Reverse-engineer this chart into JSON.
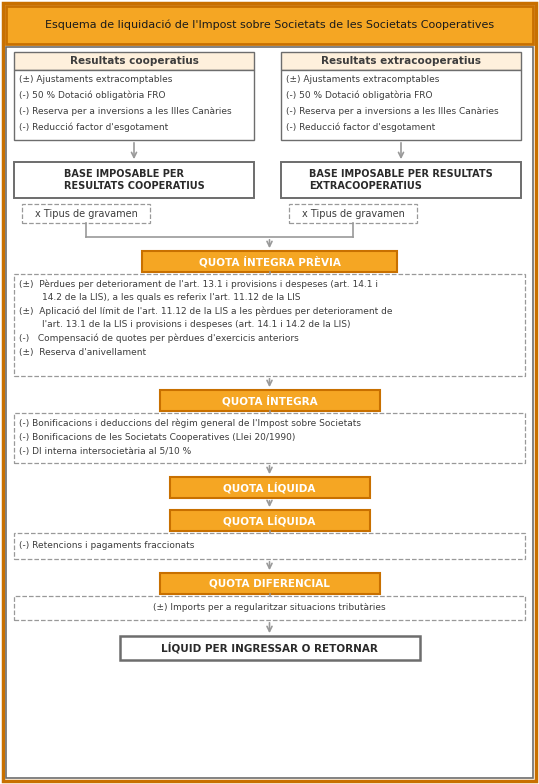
{
  "title": "Esquema de liquidació de l'Impost sobre Societats de les Societats Cooperatives",
  "orange": "#F5A623",
  "orange_dark": "#C87000",
  "orange_border": "#D4870A",
  "white": "#FFFFFF",
  "light_peach": "#FEF0DC",
  "gray_text": "#3D3D3D",
  "arrow_gray": "#999999",
  "box_border": "#6D6D6D",
  "dashed_gray": "#999999",
  "left_title": "Resultats cooperatius",
  "right_title": "Resultats extracooperatius",
  "left_items": [
    "(±) Ajustaments extracomptables",
    "(-) 50 % Dotació obligatòria FRO",
    "(-) Reserva per a inversions a les Illes Canàries",
    "(-) Reducció factor d'esgotament"
  ],
  "right_items": [
    "(±) Ajustaments extracomptables",
    "(-) 50 % Dotació obligatòria FRO",
    "(-) Reserva per a inversions a les Illes Canàries",
    "(-) Reducció factor d'esgotament"
  ],
  "left_base": "BASE IMPOSABLE PER\nRESULTATS COOPERATIUS",
  "right_base": "BASE IMPOSABLE PER RESULTATS\nEXTRACOOPERATIUS",
  "tipus": "x Tipus de gravamen",
  "qip_label": "QUOTA ÍNTEGRA PRÈVIA",
  "qip_items": [
    "(±)  Pèrdues per deteriorament de l'art. 13.1 i provisions i despeses (art. 14.1 i\n        14.2 de la LIS), a les quals es referix l'art. 11.12 de la LIS",
    "(±)  Aplicació del límit de l'art. 11.12 de la LIS a les pèrdues per deteriorament de\n        l'art. 13.1 de la LIS i provisions i despeses (art. 14.1 i 14.2 de la LIS)",
    "(-)   Compensació de quotes per pèrdues d'exercicis anteriors",
    "(±)  Reserva d'anivellament"
  ],
  "qi_label": "QUOTA ÍNTEGRA",
  "qi_items": [
    "(-) Bonificacions i deduccions del règim general de l'Impost sobre Societats",
    "(-) Bonificacions de les Societats Cooperatives (Llei 20/1990)",
    "(-) DI interna intersocietària al 5/10 %"
  ],
  "ql1_label": "QUOTA LÍQUIDA",
  "ql2_label": "QUOTA LÍQUIDA",
  "ql_items": [
    "(-) Retencions i pagaments fraccionats"
  ],
  "qd_label": "QUOTA DIFERENCIAL",
  "qd_items": [
    "(±) Imports per a regularitzar situacions tributàries"
  ],
  "liquid_label": "LÍQUID PER INGRESSAR O RETORNAR"
}
